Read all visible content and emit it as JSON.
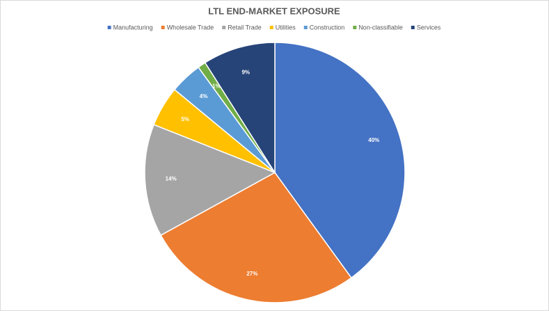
{
  "chart_data": {
    "type": "pie",
    "title": "LTL END-MARKET EXPOSURE",
    "categories": [
      "Manufacturing",
      "Wholesale Trade",
      "Retail Trade",
      "Utilities",
      "Construction",
      "Non-classifiable",
      "Services"
    ],
    "values": [
      40,
      27,
      14,
      5,
      4,
      1,
      9
    ],
    "value_labels": [
      "40%",
      "27%",
      "14%",
      "5%",
      "4%",
      "1%",
      "9%"
    ],
    "colors": [
      "#4472c4",
      "#ed7d31",
      "#a5a5a5",
      "#ffc000",
      "#5b9bd5",
      "#70ad47",
      "#264478"
    ],
    "legend": "top"
  }
}
